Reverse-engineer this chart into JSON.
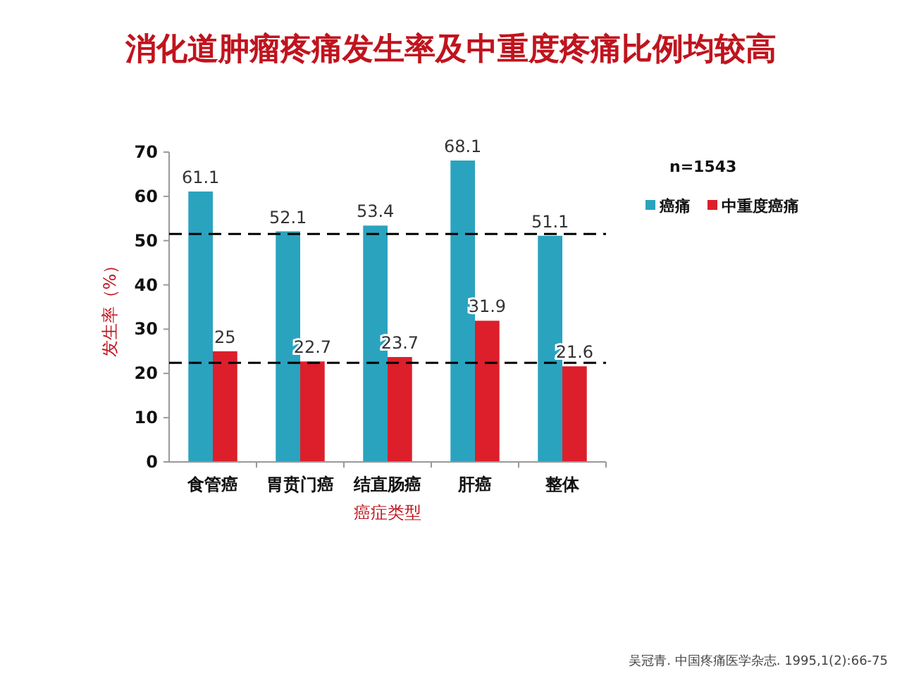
{
  "chart_data": {
    "type": "bar",
    "title": "消化道肿瘤疼痛发生率及中重度疼痛比例均较高",
    "xlabel": "癌症类型",
    "ylabel": "发生率（%）",
    "categories": [
      "食管癌",
      "胃贲门癌",
      "结直肠癌",
      "肝癌",
      "整体"
    ],
    "series": [
      {
        "name": "癌痛",
        "color": "#2aa3bf",
        "values": [
          61.1,
          52.1,
          53.4,
          68.1,
          51.1
        ]
      },
      {
        "name": "中重度癌痛",
        "color": "#dc1f2a",
        "values": [
          25,
          22.7,
          23.7,
          31.9,
          21.6
        ]
      }
    ],
    "ylim": [
      0,
      70
    ],
    "yticks": [
      0,
      10,
      20,
      30,
      40,
      50,
      60,
      70
    ],
    "data_labels": true,
    "grid": false,
    "legend": "top right",
    "ref_lines": [
      {
        "axis": "y",
        "value": 51.5,
        "color": "#000000",
        "line_style": "dashed"
      },
      {
        "axis": "y",
        "value": 22.4,
        "color": "#000000",
        "line_style": "dashed"
      }
    ],
    "annotations": [
      "n=1543",
      "吴冠青. 中国疼痛医学杂志. 1995,1(2):66-75"
    ]
  }
}
